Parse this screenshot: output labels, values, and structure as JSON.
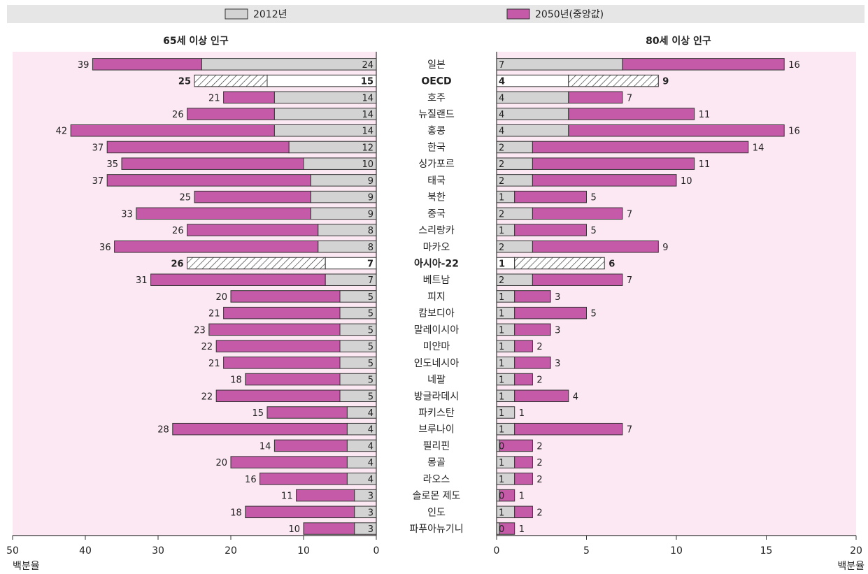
{
  "legend": {
    "items": [
      {
        "label": "2012년",
        "color": "#d3d3d3"
      },
      {
        "label": "2050년(중앙값)",
        "color": "#c55aa8"
      }
    ]
  },
  "colors": {
    "bar_2012": "#d3d3d3",
    "bar_2050": "#c55aa8",
    "panel_bg": "#fce8f2",
    "legend_bg": "#e6e6e6",
    "edge": "#333333"
  },
  "chart_data": [
    {
      "type": "bar",
      "orientation": "horizontal",
      "direction": "reversed",
      "title": "65세 이상 인구",
      "xlabel": "백분율",
      "xlim": [
        0,
        50
      ],
      "xticks": [
        50,
        40,
        30,
        20,
        10,
        0
      ],
      "categories": [
        "일본",
        "OECD",
        "호주",
        "뉴질랜드",
        "홍콩",
        "한국",
        "싱가포르",
        "태국",
        "북한",
        "중국",
        "스리랑카",
        "마카오",
        "아시아-22",
        "베트남",
        "피지",
        "캄보디아",
        "말레이시아",
        "미얀마",
        "인도네시아",
        "네팔",
        "방글라데시",
        "파키스탄",
        "브루나이",
        "필리핀",
        "몽골",
        "라오스",
        "솔로몬 제도",
        "인도",
        "파푸아뉴기니"
      ],
      "highlighted": [
        "OECD",
        "아시아-22"
      ],
      "series": [
        {
          "name": "2012년",
          "values": [
            24,
            15,
            14,
            14,
            14,
            12,
            10,
            9,
            9,
            9,
            8,
            8,
            7,
            7,
            5,
            5,
            5,
            5,
            5,
            5,
            5,
            4,
            4,
            4,
            4,
            4,
            3,
            3,
            3
          ]
        },
        {
          "name": "2050년(중앙값)",
          "values": [
            39,
            25,
            21,
            26,
            42,
            37,
            35,
            37,
            25,
            33,
            26,
            36,
            26,
            31,
            20,
            21,
            23,
            22,
            21,
            18,
            22,
            15,
            28,
            14,
            20,
            16,
            11,
            18,
            10
          ]
        }
      ]
    },
    {
      "type": "bar",
      "orientation": "horizontal",
      "title": "80세 이상 인구",
      "xlabel": "백분율",
      "xlim": [
        0,
        20
      ],
      "xticks": [
        0,
        5,
        10,
        15,
        20
      ],
      "categories": [
        "일본",
        "OECD",
        "호주",
        "뉴질랜드",
        "홍콩",
        "한국",
        "싱가포르",
        "태국",
        "북한",
        "중국",
        "스리랑카",
        "마카오",
        "아시아-22",
        "베트남",
        "피지",
        "캄보디아",
        "말레이시아",
        "미얀마",
        "인도네시아",
        "네팔",
        "방글라데시",
        "파키스탄",
        "브루나이",
        "필리핀",
        "몽골",
        "라오스",
        "솔로몬 제도",
        "인도",
        "파푸아뉴기니"
      ],
      "highlighted": [
        "OECD",
        "아시아-22"
      ],
      "series": [
        {
          "name": "2012년",
          "values": [
            7,
            4,
            4,
            4,
            4,
            2,
            2,
            2,
            1,
            2,
            1,
            2,
            1,
            2,
            1,
            1,
            1,
            1,
            1,
            1,
            1,
            1,
            1,
            0,
            1,
            1,
            0,
            1,
            0
          ]
        },
        {
          "name": "2050년(중앙값)",
          "values": [
            16,
            9,
            7,
            11,
            16,
            14,
            11,
            10,
            5,
            7,
            5,
            9,
            6,
            7,
            3,
            5,
            3,
            2,
            3,
            2,
            4,
            1,
            7,
            2,
            2,
            2,
            1,
            2,
            1
          ]
        }
      ]
    }
  ]
}
